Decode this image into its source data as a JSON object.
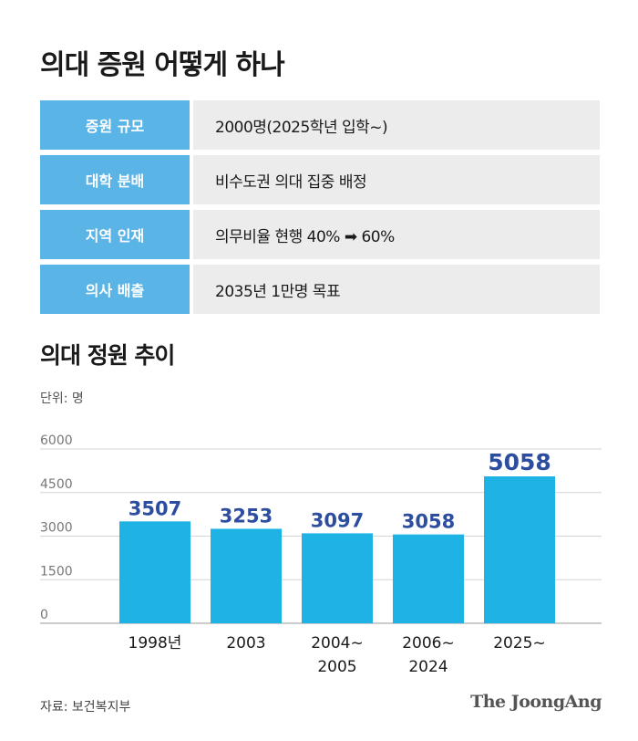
{
  "title": "의대 증원 어떻게 하나",
  "table": [
    {
      "label": "증원 규모",
      "value": "2000명(2025학년 입학~)"
    },
    {
      "label": "대학 분배",
      "value": "비수도권 의대 집중 배정"
    },
    {
      "label": "지역 인재",
      "value": "의무비율 현행 40% ➡ 60%"
    },
    {
      "label": "의사 배출",
      "value": "2035년 1만명 목표"
    }
  ],
  "chart_title": "의대 정원 추이",
  "unit_label": "단위: 명",
  "chart_data": {
    "type": "bar",
    "categories": [
      [
        "1998년"
      ],
      [
        "2003"
      ],
      [
        "2004~",
        "2005"
      ],
      [
        "2006~",
        "2024"
      ],
      [
        "2025~"
      ]
    ],
    "values": [
      3507,
      3253,
      3097,
      3058,
      5058
    ],
    "value_labels": [
      "3507",
      "3253",
      "3097",
      "3058",
      "5058"
    ],
    "y_ticks": [
      0,
      1500,
      3000,
      4500,
      6000
    ],
    "y_tick_labels": [
      "0",
      "1500",
      "3000",
      "4500",
      "6000"
    ],
    "ylim": [
      0,
      6000
    ],
    "grid": true,
    "colors": {
      "bar": "#1fb3e5",
      "value_label": "#2d4da0",
      "highlight_label": "#2d4da0"
    }
  },
  "source": "자료: 보건복지부",
  "brand": "The JoongAng"
}
